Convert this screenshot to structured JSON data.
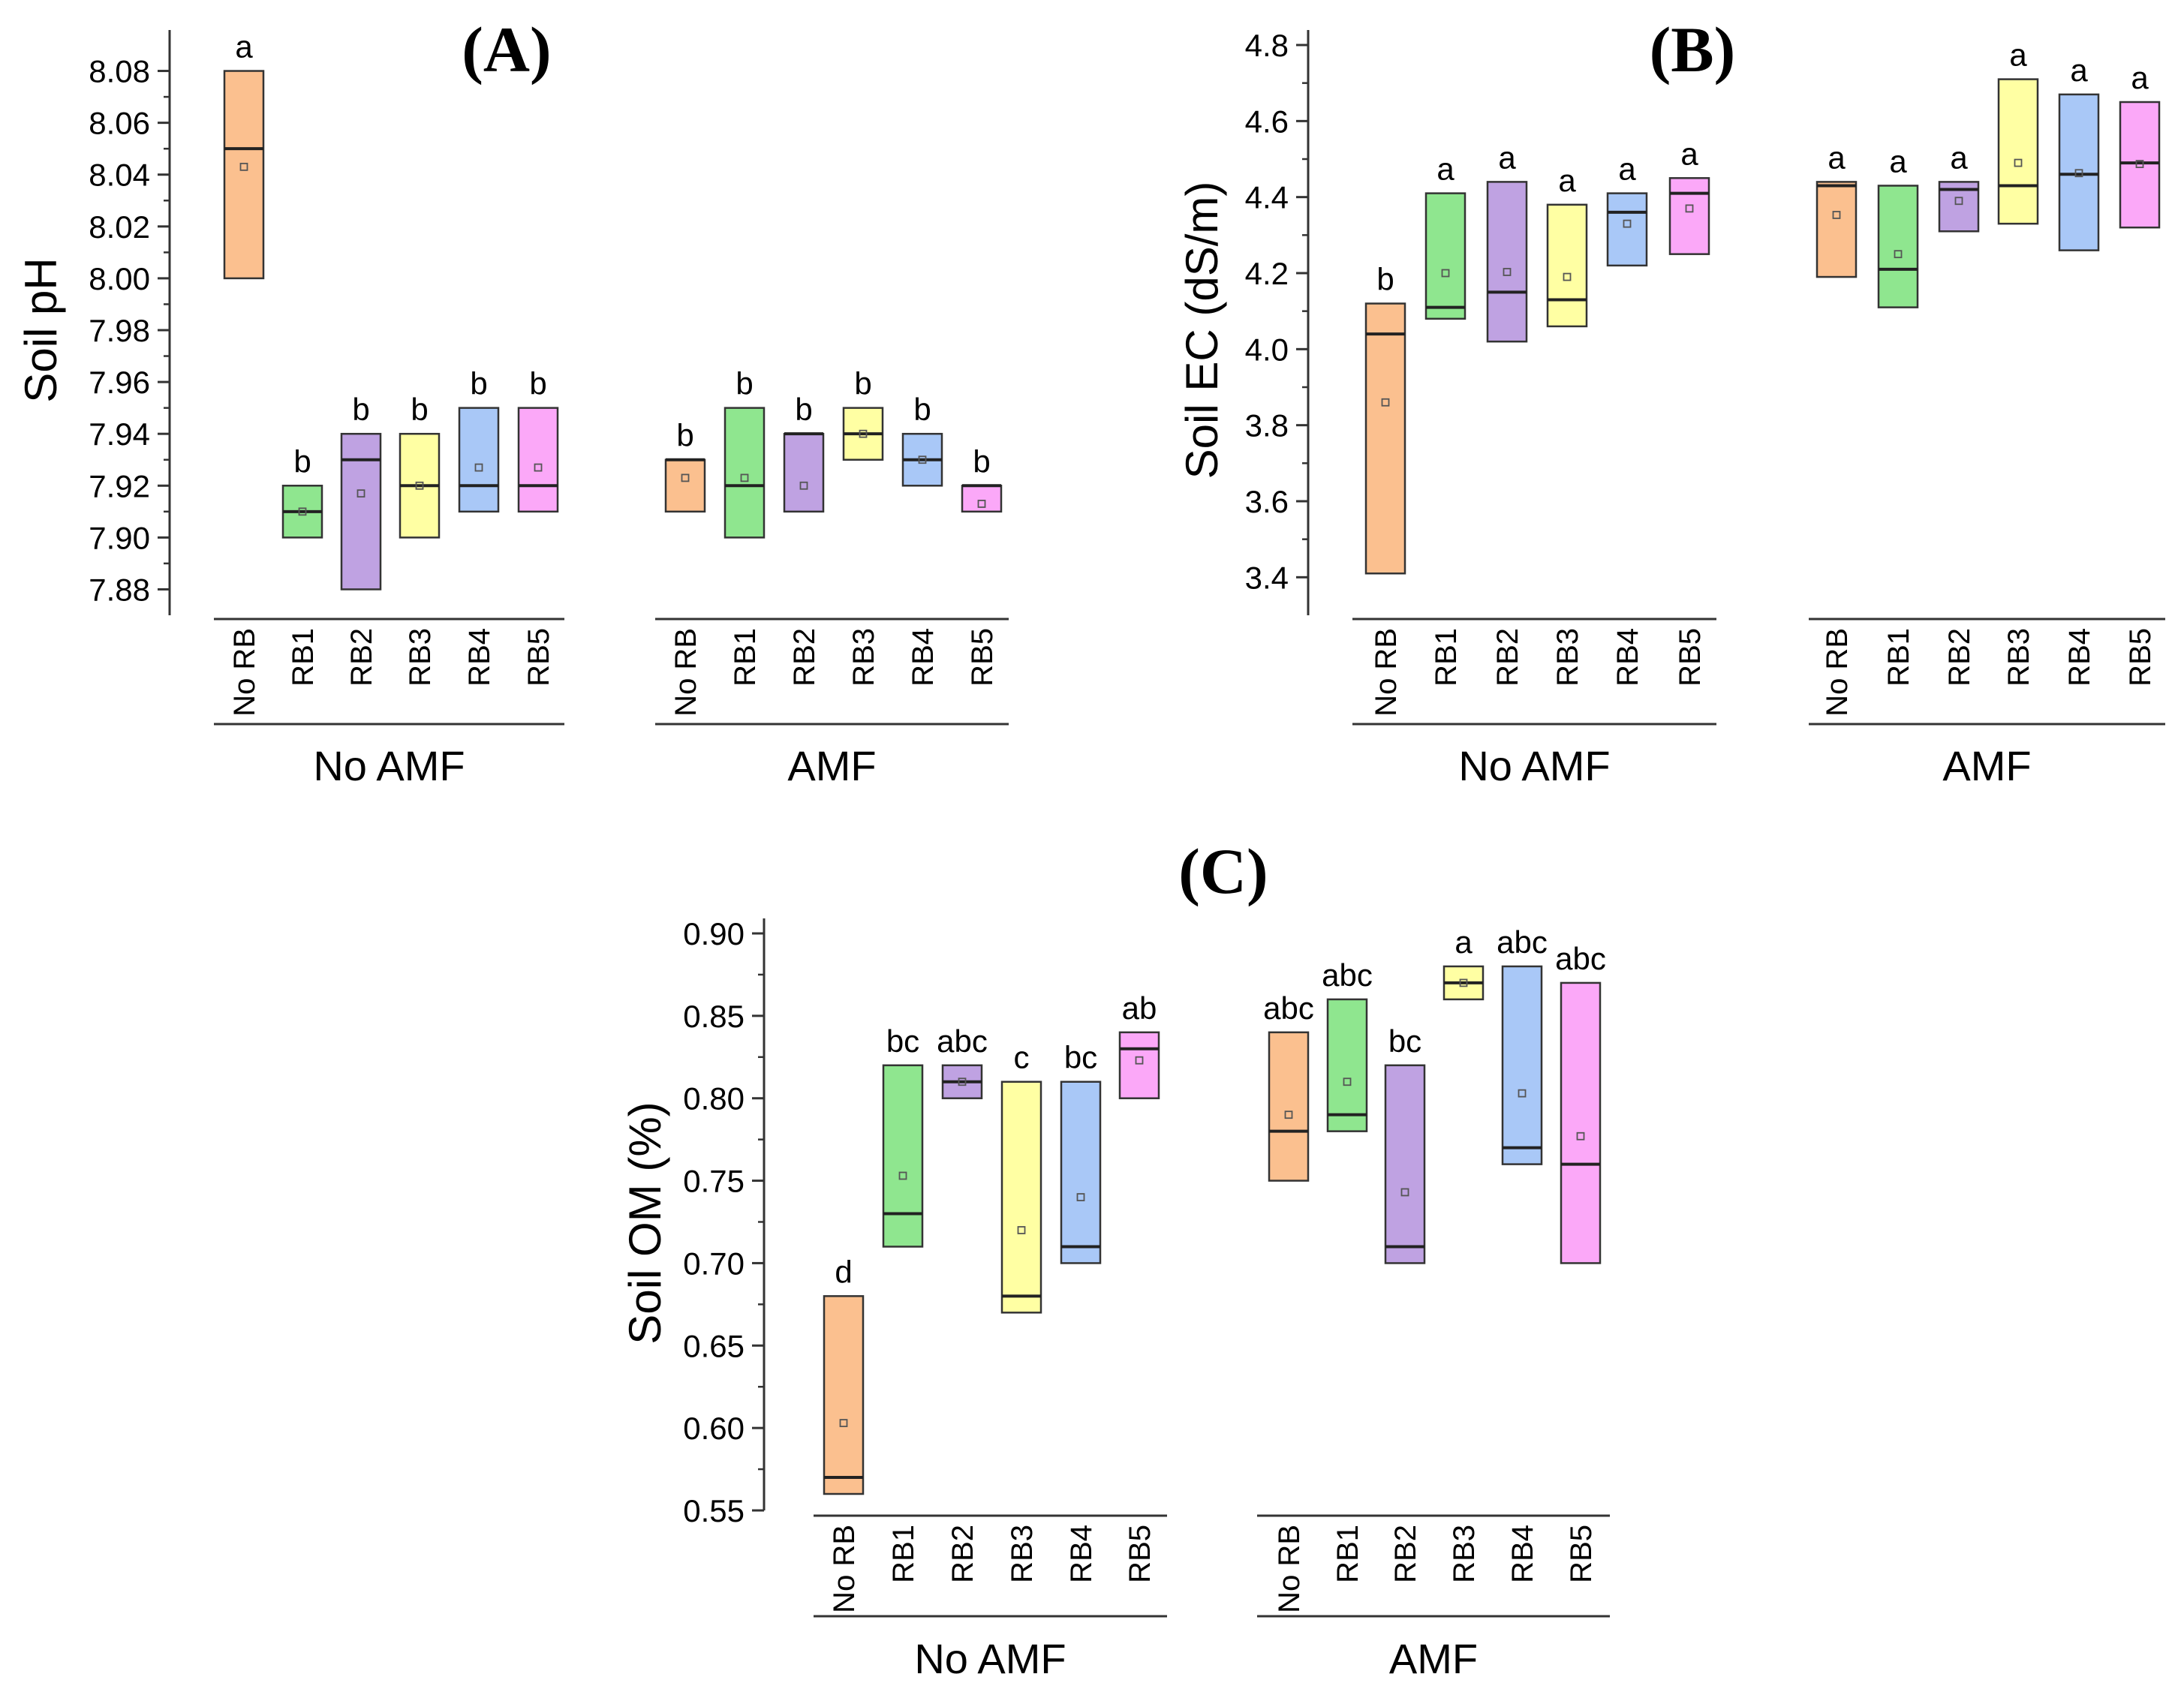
{
  "colors": {
    "No RB": "#FBC08F",
    "RB1": "#8FE68F",
    "RB2": "#BFA2E2",
    "RB3": "#FFFFA3",
    "RB4": "#A9C8F7",
    "RB5": "#FBA8F8"
  },
  "chart_data": [
    {
      "type": "box",
      "panel": "(A)",
      "ylabel": "Soil pH",
      "ylim": [
        7.87,
        8.09
      ],
      "yticks": [
        "7.88",
        "7.90",
        "7.92",
        "7.94",
        "7.96",
        "7.98",
        "8.00",
        "8.02",
        "8.04",
        "8.06",
        "8.08"
      ],
      "groups": [
        {
          "name": "No AMF",
          "boxes": [
            {
              "cat": "No RB",
              "low": 8.0,
              "high": 8.08,
              "median": 8.05,
              "mean": 8.043,
              "letter": "a"
            },
            {
              "cat": "RB1",
              "low": 7.9,
              "high": 7.92,
              "median": 7.91,
              "mean": 7.91,
              "letter": "b"
            },
            {
              "cat": "RB2",
              "low": 7.88,
              "high": 7.94,
              "median": 7.93,
              "mean": 7.917,
              "letter": "b"
            },
            {
              "cat": "RB3",
              "low": 7.9,
              "high": 7.94,
              "median": 7.92,
              "mean": 7.92,
              "letter": "b"
            },
            {
              "cat": "RB4",
              "low": 7.91,
              "high": 7.95,
              "median": 7.92,
              "mean": 7.927,
              "letter": "b"
            },
            {
              "cat": "RB5",
              "low": 7.91,
              "high": 7.95,
              "median": 7.92,
              "mean": 7.927,
              "letter": "b"
            }
          ]
        },
        {
          "name": "AMF",
          "boxes": [
            {
              "cat": "No RB",
              "low": 7.91,
              "high": 7.93,
              "median": 7.93,
              "mean": 7.923,
              "letter": "b"
            },
            {
              "cat": "RB1",
              "low": 7.9,
              "high": 7.95,
              "median": 7.92,
              "mean": 7.923,
              "letter": "b"
            },
            {
              "cat": "RB2",
              "low": 7.91,
              "high": 7.94,
              "median": 7.94,
              "mean": 7.92,
              "letter": "b"
            },
            {
              "cat": "RB3",
              "low": 7.93,
              "high": 7.95,
              "median": 7.94,
              "mean": 7.94,
              "letter": "b"
            },
            {
              "cat": "RB4",
              "low": 7.92,
              "high": 7.94,
              "median": 7.93,
              "mean": 7.93,
              "letter": "b"
            },
            {
              "cat": "RB5",
              "low": 7.91,
              "high": 7.92,
              "median": 7.92,
              "mean": 7.913,
              "letter": "b"
            }
          ]
        }
      ]
    },
    {
      "type": "box",
      "panel": "(B)",
      "ylabel": "Soil EC  (dS/m)",
      "ylim": [
        3.3,
        4.8
      ],
      "yticks": [
        "3.4",
        "3.6",
        "3.8",
        "4.0",
        "4.2",
        "4.4",
        "4.6",
        "4.8"
      ],
      "groups": [
        {
          "name": "No AMF",
          "boxes": [
            {
              "cat": "No RB",
              "low": 3.41,
              "high": 4.12,
              "median": 4.04,
              "mean": 3.86,
              "letter": "b"
            },
            {
              "cat": "RB1",
              "low": 4.08,
              "high": 4.41,
              "median": 4.11,
              "mean": 4.2,
              "letter": "a"
            },
            {
              "cat": "RB2",
              "low": 4.02,
              "high": 4.44,
              "median": 4.15,
              "mean": 4.203,
              "letter": "a"
            },
            {
              "cat": "RB3",
              "low": 4.06,
              "high": 4.38,
              "median": 4.13,
              "mean": 4.19,
              "letter": "a"
            },
            {
              "cat": "RB4",
              "low": 4.22,
              "high": 4.41,
              "median": 4.36,
              "mean": 4.33,
              "letter": "a"
            },
            {
              "cat": "RB5",
              "low": 4.25,
              "high": 4.45,
              "median": 4.41,
              "mean": 4.37,
              "letter": "a"
            }
          ]
        },
        {
          "name": "AMF",
          "boxes": [
            {
              "cat": "No RB",
              "low": 4.19,
              "high": 4.44,
              "median": 4.43,
              "mean": 4.353,
              "letter": "a"
            },
            {
              "cat": "RB1",
              "low": 4.11,
              "high": 4.43,
              "median": 4.21,
              "mean": 4.25,
              "letter": "a"
            },
            {
              "cat": "RB2",
              "low": 4.31,
              "high": 4.44,
              "median": 4.42,
              "mean": 4.39,
              "letter": "a"
            },
            {
              "cat": "RB3",
              "low": 4.33,
              "high": 4.71,
              "median": 4.43,
              "mean": 4.49,
              "letter": "a"
            },
            {
              "cat": "RB4",
              "low": 4.26,
              "high": 4.67,
              "median": 4.46,
              "mean": 4.463,
              "letter": "a"
            },
            {
              "cat": "RB5",
              "low": 4.32,
              "high": 4.65,
              "median": 4.49,
              "mean": 4.487,
              "letter": "a"
            }
          ]
        }
      ]
    },
    {
      "type": "box",
      "panel": "(C)",
      "ylabel": "Soil OM (%)",
      "ylim": [
        0.55,
        0.9
      ],
      "yticks": [
        "0.55",
        "0.60",
        "0.65",
        "0.70",
        "0.75",
        "0.80",
        "0.85",
        "0.90"
      ],
      "groups": [
        {
          "name": "No AMF",
          "boxes": [
            {
              "cat": "No RB",
              "low": 0.56,
              "high": 0.68,
              "median": 0.57,
              "mean": 0.603,
              "letter": "d"
            },
            {
              "cat": "RB1",
              "low": 0.71,
              "high": 0.82,
              "median": 0.73,
              "mean": 0.753,
              "letter": "bc"
            },
            {
              "cat": "RB2",
              "low": 0.8,
              "high": 0.82,
              "median": 0.81,
              "mean": 0.81,
              "letter": "abc"
            },
            {
              "cat": "RB3",
              "low": 0.67,
              "high": 0.81,
              "median": 0.68,
              "mean": 0.72,
              "letter": "c"
            },
            {
              "cat": "RB4",
              "low": 0.7,
              "high": 0.81,
              "median": 0.71,
              "mean": 0.74,
              "letter": "bc"
            },
            {
              "cat": "RB5",
              "low": 0.8,
              "high": 0.84,
              "median": 0.83,
              "mean": 0.823,
              "letter": "ab"
            }
          ]
        },
        {
          "name": "AMF",
          "boxes": [
            {
              "cat": "No RB",
              "low": 0.75,
              "high": 0.84,
              "median": 0.78,
              "mean": 0.79,
              "letter": "abc"
            },
            {
              "cat": "RB1",
              "low": 0.78,
              "high": 0.86,
              "median": 0.79,
              "mean": 0.81,
              "letter": "abc"
            },
            {
              "cat": "RB2",
              "low": 0.7,
              "high": 0.82,
              "median": 0.71,
              "mean": 0.743,
              "letter": "bc"
            },
            {
              "cat": "RB3",
              "low": 0.86,
              "high": 0.88,
              "median": 0.87,
              "mean": 0.87,
              "letter": "a"
            },
            {
              "cat": "RB4",
              "low": 0.76,
              "high": 0.88,
              "median": 0.77,
              "mean": 0.803,
              "letter": "abc"
            },
            {
              "cat": "RB5",
              "low": 0.7,
              "high": 0.87,
              "median": 0.76,
              "mean": 0.777,
              "letter": "abc"
            }
          ]
        }
      ]
    }
  ]
}
